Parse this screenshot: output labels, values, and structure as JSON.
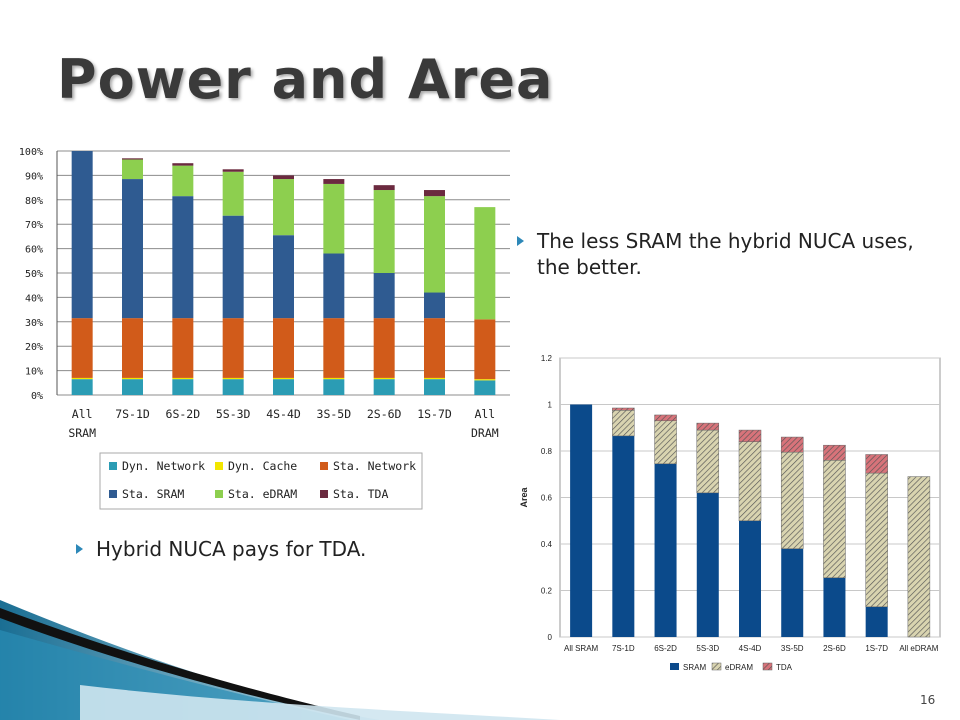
{
  "slide": {
    "title": "Power and Area",
    "bullets": [
      "The less SRAM the hybrid NUCA uses, the better.",
      "Hybrid NUCA pays for TDA."
    ],
    "page_number": "16"
  },
  "chart_data": [
    {
      "type": "bar",
      "stacked": true,
      "categories": [
        [
          "All",
          "SRAM"
        ],
        [
          "7S-1D"
        ],
        [
          "6S-2D"
        ],
        [
          "5S-3D"
        ],
        [
          "4S-4D"
        ],
        [
          "3S-5D"
        ],
        [
          "2S-6D"
        ],
        [
          "1S-7D"
        ],
        [
          "All",
          "DRAM"
        ]
      ],
      "ylim": [
        0,
        100
      ],
      "yticks": [
        0,
        10,
        20,
        30,
        40,
        50,
        60,
        70,
        80,
        90,
        100
      ],
      "ytick_labels": [
        "0%",
        "10%",
        "20%",
        "30%",
        "40%",
        "50%",
        "60%",
        "70%",
        "80%",
        "90%",
        "100%"
      ],
      "grid": true,
      "legend_position": "bottom",
      "series": [
        {
          "name": "Dyn. Network",
          "color": "#2b9cb4",
          "values": [
            6.5,
            6.5,
            6.5,
            6.5,
            6.5,
            6.5,
            6.5,
            6.5,
            6
          ]
        },
        {
          "name": "Dyn. Cache",
          "color": "#f2e600",
          "values": [
            0.5,
            0.5,
            0.5,
            0.5,
            0.5,
            0.5,
            0.5,
            0.5,
            0.5
          ]
        },
        {
          "name": "Sta. Network",
          "color": "#d15b1a",
          "values": [
            24.5,
            24.5,
            24.5,
            24.5,
            24.5,
            24.5,
            24.5,
            24.5,
            24.5
          ]
        },
        {
          "name": "Sta. SRAM",
          "color": "#2f5b91",
          "values": [
            68.5,
            57,
            50,
            42,
            34,
            26.5,
            18.5,
            10.5,
            0
          ]
        },
        {
          "name": "Sta. eDRAM",
          "color": "#8dcf4f",
          "values": [
            0,
            8,
            12.5,
            18,
            23,
            28.5,
            34,
            39.5,
            46
          ]
        },
        {
          "name": "Sta. TDA",
          "color": "#6b2a3f",
          "values": [
            0,
            0.5,
            1,
            1,
            1.5,
            2,
            2,
            2.5,
            0
          ]
        }
      ]
    },
    {
      "type": "bar",
      "stacked": true,
      "categories": [
        "All SRAM",
        "7S-1D",
        "6S-2D",
        "5S-3D",
        "4S-4D",
        "3S-5D",
        "2S-6D",
        "1S-7D",
        "All eDRAM"
      ],
      "ylabel": "Area",
      "ylim": [
        0,
        1.2
      ],
      "yticks": [
        0,
        0.2,
        0.4,
        0.6,
        0.8,
        1,
        1.2
      ],
      "ytick_labels": [
        "0",
        "0.2",
        "0.4",
        "0.6",
        "0.8",
        "1",
        "1.2"
      ],
      "grid": true,
      "legend_position": "bottom",
      "series": [
        {
          "name": "SRAM",
          "color": "#0b4a8b",
          "pattern": "solid",
          "values": [
            1.0,
            0.865,
            0.745,
            0.62,
            0.5,
            0.38,
            0.255,
            0.13,
            0
          ]
        },
        {
          "name": "eDRAM",
          "color": "#d9d4b0",
          "pattern": "hatch",
          "values": [
            0,
            0.11,
            0.185,
            0.27,
            0.34,
            0.415,
            0.505,
            0.575,
            0.69
          ]
        },
        {
          "name": "TDA",
          "color": "#d8737a",
          "pattern": "hatch",
          "values": [
            0,
            0.01,
            0.025,
            0.03,
            0.05,
            0.065,
            0.065,
            0.08,
            0
          ]
        }
      ]
    }
  ]
}
